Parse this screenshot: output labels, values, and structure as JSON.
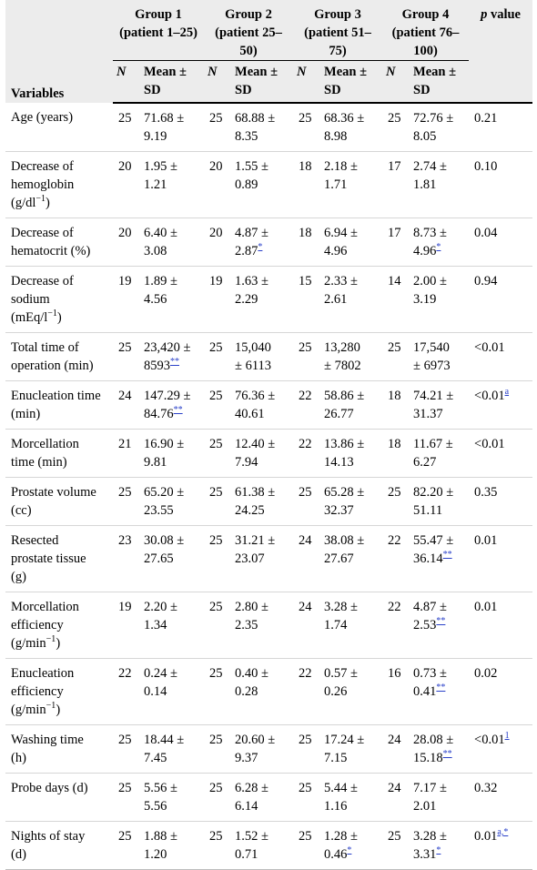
{
  "header": {
    "variables": "Variables",
    "p_value_italic": "p",
    "p_value_rest": " value",
    "groups": [
      {
        "line1": "Group 1",
        "line2": "(patient 1–25)"
      },
      {
        "line1": "Group 2",
        "line2": "(patient 25–",
        "line3": "50)"
      },
      {
        "line1": "Group 3",
        "line2": "(patient 51–",
        "line3": "75)"
      },
      {
        "line1": "Group 4",
        "line2": "(patient 76–",
        "line3": "100)"
      }
    ],
    "n_label": "N",
    "mean_label_1": "Mean ±",
    "mean_label_2": "SD"
  },
  "rows": [
    {
      "var": [
        "Age (years)"
      ],
      "g": [
        [
          "25",
          "71.68 ±",
          "9.19",
          ""
        ],
        [
          "25",
          "68.88 ±",
          "8.35",
          ""
        ],
        [
          "25",
          "68.36 ±",
          "8.98",
          ""
        ],
        [
          "25",
          "72.76 ±",
          "8.05",
          ""
        ]
      ],
      "p": "0.21",
      "pfn": ""
    },
    {
      "var": [
        "Decrease of",
        "hemoglobin",
        "(g/dl"
      ],
      "varsup": "−1",
      "varend": ")",
      "g": [
        [
          "20",
          "1.95 ±",
          "1.21",
          ""
        ],
        [
          "20",
          "1.55 ±",
          "0.89",
          ""
        ],
        [
          "18",
          "2.18 ±",
          "1.71",
          ""
        ],
        [
          "17",
          "2.74 ±",
          "1.81",
          ""
        ]
      ],
      "p": "0.10",
      "pfn": ""
    },
    {
      "var": [
        "Decrease of",
        "hematocrit (%)"
      ],
      "g": [
        [
          "20",
          "6.40 ±",
          "3.08",
          ""
        ],
        [
          "20",
          "4.87 ±",
          "2.87",
          "*"
        ],
        [
          "18",
          "6.94 ±",
          "4.96",
          ""
        ],
        [
          "17",
          "8.73 ±",
          "4.96",
          "*"
        ]
      ],
      "p": "0.04",
      "pfn": ""
    },
    {
      "var": [
        "Decrease of",
        "sodium",
        "(mEq/l"
      ],
      "varsup": "−1",
      "varend": ")",
      "g": [
        [
          "19",
          "1.89 ±",
          "4.56",
          ""
        ],
        [
          "19",
          "1.63 ±",
          "2.29",
          ""
        ],
        [
          "15",
          "2.33 ±",
          "2.61",
          ""
        ],
        [
          "14",
          "2.00 ±",
          "3.19",
          ""
        ]
      ],
      "p": "0.94",
      "pfn": ""
    },
    {
      "var": [
        "Total time of",
        "operation (min)"
      ],
      "g": [
        [
          "25",
          "23,420 ±",
          "8593",
          "**"
        ],
        [
          "25",
          "15,040",
          "± 6113",
          ""
        ],
        [
          "25",
          "13,280",
          "± 7802",
          ""
        ],
        [
          "25",
          "17,540",
          "± 6973",
          ""
        ]
      ],
      "p": "<0.01",
      "pfn": ""
    },
    {
      "var": [
        "Enucleation time",
        "(min)"
      ],
      "g": [
        [
          "24",
          "147.29 ±",
          "84.76",
          "**"
        ],
        [
          "25",
          "76.36 ±",
          "40.61",
          ""
        ],
        [
          "22",
          "58.86 ±",
          "26.77",
          ""
        ],
        [
          "18",
          "74.21 ±",
          "31.37",
          ""
        ]
      ],
      "p": "<0.01",
      "pfn": "a"
    },
    {
      "var": [
        "Morcellation",
        "time (min)"
      ],
      "g": [
        [
          "21",
          "16.90 ±",
          "9.81",
          ""
        ],
        [
          "25",
          "12.40 ±",
          "7.94",
          ""
        ],
        [
          "22",
          "13.86 ±",
          "14.13",
          ""
        ],
        [
          "18",
          "11.67 ±",
          "6.27",
          ""
        ]
      ],
      "p": "<0.01",
      "pfn": ""
    },
    {
      "var": [
        "Prostate volume",
        "(cc)"
      ],
      "g": [
        [
          "25",
          "65.20 ±",
          "23.55",
          ""
        ],
        [
          "25",
          "61.38 ±",
          "24.25",
          ""
        ],
        [
          "25",
          "65.28 ±",
          "32.37",
          ""
        ],
        [
          "25",
          "82.20 ±",
          "51.11",
          ""
        ]
      ],
      "p": "0.35",
      "pfn": ""
    },
    {
      "var": [
        "Resected",
        "prostate tissue",
        "(g)"
      ],
      "g": [
        [
          "23",
          "30.08 ±",
          "27.65",
          ""
        ],
        [
          "25",
          "31.21 ±",
          "23.07",
          ""
        ],
        [
          "24",
          "38.08 ±",
          "27.67",
          ""
        ],
        [
          "22",
          "55.47 ±",
          "36.14",
          "**"
        ]
      ],
      "p": "0.01",
      "pfn": ""
    },
    {
      "var": [
        "Morcellation",
        "efficiency",
        "(g/min"
      ],
      "varsup": "−1",
      "varend": ")",
      "g": [
        [
          "19",
          "2.20 ±",
          "1.34",
          ""
        ],
        [
          "25",
          "2.80 ±",
          "2.35",
          ""
        ],
        [
          "24",
          "3.28 ±",
          "1.74",
          ""
        ],
        [
          "22",
          "4.87 ±",
          "2.53",
          "**"
        ]
      ],
      "p": "0.01",
      "pfn": ""
    },
    {
      "var": [
        "Enucleation",
        "efficiency",
        "(g/min"
      ],
      "varsup": "−1",
      "varend": ")",
      "g": [
        [
          "22",
          "0.24 ±",
          "0.14",
          ""
        ],
        [
          "25",
          "0.40 ±",
          "0.28",
          ""
        ],
        [
          "22",
          "0.57 ±",
          "0.26",
          ""
        ],
        [
          "16",
          "0.73 ±",
          "0.41",
          "**"
        ]
      ],
      "p": "0.02",
      "pfn": ""
    },
    {
      "var": [
        "Washing time",
        "(h)"
      ],
      "g": [
        [
          "25",
          "18.44 ±",
          "7.45",
          ""
        ],
        [
          "25",
          "20.60 ±",
          "9.37",
          ""
        ],
        [
          "25",
          "17.24 ±",
          "7.15",
          ""
        ],
        [
          "24",
          "28.08 ±",
          "15.18",
          "**"
        ]
      ],
      "p": "<0.01",
      "pfn": "1"
    },
    {
      "var": [
        "Probe days (d)"
      ],
      "g": [
        [
          "25",
          "5.56 ±",
          "5.56",
          ""
        ],
        [
          "25",
          "6.28 ±",
          "6.14",
          ""
        ],
        [
          "25",
          "5.44 ±",
          "1.16",
          ""
        ],
        [
          "24",
          "7.17 ±",
          "2.01",
          ""
        ]
      ],
      "p": "0.32",
      "pfn": ""
    },
    {
      "var": [
        "Nights of stay",
        "(d)"
      ],
      "g": [
        [
          "25",
          "1.88 ±",
          "1.20",
          ""
        ],
        [
          "25",
          "1.52 ±",
          "0.71",
          ""
        ],
        [
          "25",
          "1.28 ±",
          "0.46",
          "*"
        ],
        [
          "25",
          "3.28 ±",
          "3.31",
          "*"
        ]
      ],
      "p": "0.01",
      "pfn": "a,*"
    }
  ]
}
